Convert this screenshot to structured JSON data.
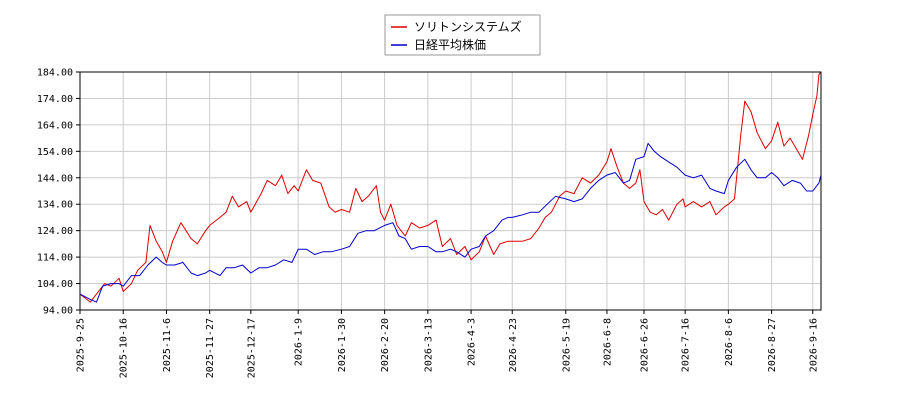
{
  "chart_data": {
    "type": "line",
    "ylim": [
      94.0,
      184.0
    ],
    "yticks": [
      "94.00",
      "104.00",
      "114.00",
      "124.00",
      "134.00",
      "144.00",
      "154.00",
      "164.00",
      "174.00",
      "184.00"
    ],
    "yticks_values": [
      94,
      104,
      114,
      124,
      134,
      144,
      154,
      164,
      174,
      184
    ],
    "xlim": [
      "2025-09-25",
      "2026-09-20"
    ],
    "xticks": [
      "2025-9-25",
      "2025-10-16",
      "2025-11-6",
      "2025-11-27",
      "2025-12-17",
      "2026-1-9",
      "2026-1-30",
      "2026-2-20",
      "2026-3-13",
      "2026-4-3",
      "2026-4-23",
      "2026-5-19",
      "2026-6-8",
      "2026-6-26",
      "2026-7-16",
      "2026-8-6",
      "2026-8-27",
      "2026-9-16"
    ],
    "xticks_dates": [
      "2025-09-25",
      "2025-10-16",
      "2025-11-06",
      "2025-11-27",
      "2025-12-17",
      "2026-01-09",
      "2026-01-30",
      "2026-02-20",
      "2026-03-13",
      "2026-04-03",
      "2026-04-23",
      "2026-05-19",
      "2026-06-08",
      "2026-06-26",
      "2026-07-16",
      "2026-08-06",
      "2026-08-27",
      "2026-09-16"
    ],
    "grid": true,
    "legend_position": "top-center",
    "series": [
      {
        "name": "ソリトンシステムズ",
        "color": "#dd0000",
        "points": [
          [
            "2025-09-25",
            100
          ],
          [
            "2025-09-30",
            97
          ],
          [
            "2025-10-03",
            100
          ],
          [
            "2025-10-07",
            104
          ],
          [
            "2025-10-10",
            103
          ],
          [
            "2025-10-14",
            106
          ],
          [
            "2025-10-16",
            101
          ],
          [
            "2025-10-20",
            104
          ],
          [
            "2025-10-23",
            109
          ],
          [
            "2025-10-27",
            112
          ],
          [
            "2025-10-29",
            126
          ],
          [
            "2025-11-01",
            120
          ],
          [
            "2025-11-04",
            116
          ],
          [
            "2025-11-06",
            112
          ],
          [
            "2025-11-09",
            120
          ],
          [
            "2025-11-13",
            127
          ],
          [
            "2025-11-18",
            121
          ],
          [
            "2025-11-21",
            119
          ],
          [
            "2025-11-25",
            124
          ],
          [
            "2025-11-27",
            126
          ],
          [
            "2025-12-02",
            129
          ],
          [
            "2025-12-05",
            131
          ],
          [
            "2025-12-08",
            137
          ],
          [
            "2025-12-11",
            133
          ],
          [
            "2025-12-15",
            135
          ],
          [
            "2025-12-17",
            131
          ],
          [
            "2025-12-22",
            138
          ],
          [
            "2025-12-25",
            143
          ],
          [
            "2025-12-29",
            141
          ],
          [
            "2026-01-01",
            145
          ],
          [
            "2026-01-04",
            138
          ],
          [
            "2026-01-07",
            141
          ],
          [
            "2026-01-09",
            139
          ],
          [
            "2026-01-13",
            147
          ],
          [
            "2026-01-16",
            143
          ],
          [
            "2026-01-20",
            142
          ],
          [
            "2026-01-24",
            133
          ],
          [
            "2026-01-27",
            131
          ],
          [
            "2026-01-30",
            132
          ],
          [
            "2026-02-03",
            131
          ],
          [
            "2026-02-06",
            140
          ],
          [
            "2026-02-09",
            135
          ],
          [
            "2026-02-12",
            137
          ],
          [
            "2026-02-16",
            141
          ],
          [
            "2026-02-18",
            131
          ],
          [
            "2026-02-20",
            128
          ],
          [
            "2026-02-23",
            134
          ],
          [
            "2026-02-26",
            126
          ],
          [
            "2026-03-02",
            122
          ],
          [
            "2026-03-05",
            127
          ],
          [
            "2026-03-09",
            125
          ],
          [
            "2026-03-13",
            126
          ],
          [
            "2026-03-17",
            128
          ],
          [
            "2026-03-20",
            118
          ],
          [
            "2026-03-24",
            121
          ],
          [
            "2026-03-27",
            115
          ],
          [
            "2026-03-31",
            118
          ],
          [
            "2026-04-03",
            113
          ],
          [
            "2026-04-07",
            116
          ],
          [
            "2026-04-10",
            122
          ],
          [
            "2026-04-14",
            115
          ],
          [
            "2026-04-17",
            119
          ],
          [
            "2026-04-21",
            120
          ],
          [
            "2026-04-23",
            120
          ],
          [
            "2026-04-28",
            120
          ],
          [
            "2026-05-02",
            121
          ],
          [
            "2026-05-06",
            125
          ],
          [
            "2026-05-09",
            129
          ],
          [
            "2026-05-12",
            131
          ],
          [
            "2026-05-16",
            137
          ],
          [
            "2026-05-19",
            139
          ],
          [
            "2026-05-23",
            138
          ],
          [
            "2026-05-27",
            144
          ],
          [
            "2026-05-31",
            142
          ],
          [
            "2026-06-04",
            145
          ],
          [
            "2026-06-08",
            150
          ],
          [
            "2026-06-10",
            155
          ],
          [
            "2026-06-13",
            148
          ],
          [
            "2026-06-16",
            142
          ],
          [
            "2026-06-19",
            140
          ],
          [
            "2026-06-22",
            142
          ],
          [
            "2026-06-24",
            147
          ],
          [
            "2026-06-26",
            135
          ],
          [
            "2026-06-29",
            131
          ],
          [
            "2026-07-02",
            130
          ],
          [
            "2026-07-05",
            132
          ],
          [
            "2026-07-08",
            128
          ],
          [
            "2026-07-12",
            134
          ],
          [
            "2026-07-15",
            136
          ],
          [
            "2026-07-16",
            133
          ],
          [
            "2026-07-20",
            135
          ],
          [
            "2026-07-24",
            133
          ],
          [
            "2026-07-28",
            135
          ],
          [
            "2026-07-31",
            130
          ],
          [
            "2026-08-04",
            133
          ],
          [
            "2026-08-06",
            134
          ],
          [
            "2026-08-09",
            136
          ],
          [
            "2026-08-12",
            160
          ],
          [
            "2026-08-14",
            173
          ],
          [
            "2026-08-17",
            169
          ],
          [
            "2026-08-20",
            161
          ],
          [
            "2026-08-24",
            155
          ],
          [
            "2026-08-27",
            158
          ],
          [
            "2026-08-30",
            165
          ],
          [
            "2026-09-02",
            156
          ],
          [
            "2026-09-05",
            159
          ],
          [
            "2026-09-08",
            155
          ],
          [
            "2026-09-11",
            151
          ],
          [
            "2026-09-14",
            160
          ],
          [
            "2026-09-16",
            168
          ],
          [
            "2026-09-18",
            175
          ],
          [
            "2026-09-19",
            183
          ],
          [
            "2026-09-20",
            185
          ]
        ]
      },
      {
        "name": "日経平均株価",
        "color": "#0000cc",
        "points": [
          [
            "2025-09-25",
            100
          ],
          [
            "2025-09-30",
            98
          ],
          [
            "2025-10-03",
            97
          ],
          [
            "2025-10-06",
            103
          ],
          [
            "2025-10-10",
            104
          ],
          [
            "2025-10-14",
            104
          ],
          [
            "2025-10-16",
            103
          ],
          [
            "2025-10-20",
            107
          ],
          [
            "2025-10-24",
            107
          ],
          [
            "2025-10-28",
            111
          ],
          [
            "2025-11-01",
            114
          ],
          [
            "2025-11-04",
            112
          ],
          [
            "2025-11-06",
            111
          ],
          [
            "2025-11-10",
            111
          ],
          [
            "2025-11-14",
            112
          ],
          [
            "2025-11-18",
            108
          ],
          [
            "2025-11-21",
            107
          ],
          [
            "2025-11-25",
            108
          ],
          [
            "2025-11-27",
            109
          ],
          [
            "2025-12-02",
            107
          ],
          [
            "2025-12-05",
            110
          ],
          [
            "2025-12-09",
            110
          ],
          [
            "2025-12-13",
            111
          ],
          [
            "2025-12-17",
            108
          ],
          [
            "2025-12-21",
            110
          ],
          [
            "2025-12-25",
            110
          ],
          [
            "2025-12-29",
            111
          ],
          [
            "2026-01-02",
            113
          ],
          [
            "2026-01-06",
            112
          ],
          [
            "2026-01-09",
            117
          ],
          [
            "2026-01-13",
            117
          ],
          [
            "2026-01-17",
            115
          ],
          [
            "2026-01-21",
            116
          ],
          [
            "2026-01-25",
            116
          ],
          [
            "2026-01-30",
            117
          ],
          [
            "2026-02-03",
            118
          ],
          [
            "2026-02-07",
            123
          ],
          [
            "2026-02-11",
            124
          ],
          [
            "2026-02-15",
            124
          ],
          [
            "2026-02-20",
            126
          ],
          [
            "2026-02-24",
            127
          ],
          [
            "2026-02-27",
            122
          ],
          [
            "2026-03-02",
            121
          ],
          [
            "2026-03-05",
            117
          ],
          [
            "2026-03-09",
            118
          ],
          [
            "2026-03-13",
            118
          ],
          [
            "2026-03-17",
            116
          ],
          [
            "2026-03-20",
            116
          ],
          [
            "2026-03-24",
            117
          ],
          [
            "2026-03-27",
            116
          ],
          [
            "2026-03-31",
            114
          ],
          [
            "2026-04-03",
            117
          ],
          [
            "2026-04-07",
            118
          ],
          [
            "2026-04-10",
            122
          ],
          [
            "2026-04-14",
            124
          ],
          [
            "2026-04-18",
            128
          ],
          [
            "2026-04-21",
            129
          ],
          [
            "2026-04-23",
            129
          ],
          [
            "2026-04-28",
            130
          ],
          [
            "2026-05-02",
            131
          ],
          [
            "2026-05-06",
            131
          ],
          [
            "2026-05-10",
            134
          ],
          [
            "2026-05-14",
            137
          ],
          [
            "2026-05-19",
            136
          ],
          [
            "2026-05-23",
            135
          ],
          [
            "2026-05-27",
            136
          ],
          [
            "2026-05-31",
            140
          ],
          [
            "2026-06-04",
            143
          ],
          [
            "2026-06-08",
            145
          ],
          [
            "2026-06-12",
            146
          ],
          [
            "2026-06-16",
            142
          ],
          [
            "2026-06-19",
            143
          ],
          [
            "2026-06-22",
            151
          ],
          [
            "2026-06-26",
            152
          ],
          [
            "2026-06-28",
            157
          ],
          [
            "2026-07-01",
            154
          ],
          [
            "2026-07-04",
            152
          ],
          [
            "2026-07-08",
            150
          ],
          [
            "2026-07-12",
            148
          ],
          [
            "2026-07-16",
            145
          ],
          [
            "2026-07-20",
            144
          ],
          [
            "2026-07-24",
            145
          ],
          [
            "2026-07-28",
            140
          ],
          [
            "2026-07-31",
            139
          ],
          [
            "2026-08-04",
            138
          ],
          [
            "2026-08-06",
            143
          ],
          [
            "2026-08-10",
            148
          ],
          [
            "2026-08-14",
            151
          ],
          [
            "2026-08-17",
            147
          ],
          [
            "2026-08-20",
            144
          ],
          [
            "2026-08-24",
            144
          ],
          [
            "2026-08-27",
            146
          ],
          [
            "2026-08-30",
            144
          ],
          [
            "2026-09-02",
            141
          ],
          [
            "2026-09-06",
            143
          ],
          [
            "2026-09-10",
            142
          ],
          [
            "2026-09-13",
            139
          ],
          [
            "2026-09-16",
            139
          ],
          [
            "2026-09-19",
            142
          ],
          [
            "2026-09-20",
            145
          ]
        ]
      }
    ]
  }
}
